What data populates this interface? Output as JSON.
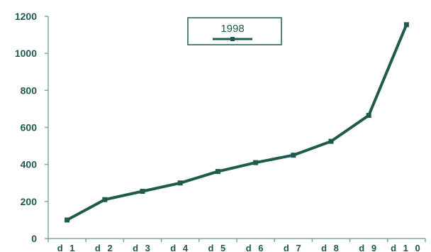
{
  "chart_data": {
    "type": "line",
    "categories": [
      "d 1",
      "d 2",
      "d 3",
      "d 4",
      "d 5",
      "d 6",
      "d 7",
      "d 8",
      "d 9",
      "d 1 0"
    ],
    "series": [
      {
        "name": "1998",
        "values": [
          100,
          210,
          255,
          300,
          362,
          410,
          450,
          525,
          665,
          1155
        ]
      }
    ],
    "ylim": [
      0,
      1200
    ],
    "yticks": [
      0,
      200,
      400,
      600,
      800,
      1000,
      1200
    ],
    "grid": false,
    "legend_position": "top-center",
    "colors": {
      "series": "#1f5a4e",
      "axis": "#7fa79c",
      "text": "#1f5a4e"
    }
  }
}
